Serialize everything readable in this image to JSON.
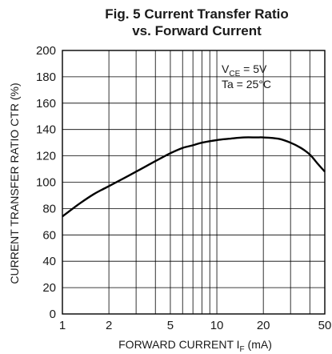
{
  "chart_data": {
    "type": "line",
    "title_line1": "Fig. 5 Current Transfer Ratio",
    "title_line2": "vs. Forward Current",
    "xlabel": "FORWARD CURRENT I",
    "xlabel_sub": "F",
    "xlabel_unit": " (mA)",
    "ylabel": "CURRENT TRANSFER RATIO CTR (%)",
    "x_scale": "log",
    "xlim": [
      1,
      50
    ],
    "ylim": [
      0,
      200
    ],
    "x_ticks": [
      {
        "value": 1,
        "label": "1"
      },
      {
        "value": 2,
        "label": "2"
      },
      {
        "value": 5,
        "label": "5"
      },
      {
        "value": 10,
        "label": "10"
      },
      {
        "value": 20,
        "label": "20"
      },
      {
        "value": 50,
        "label": "50"
      }
    ],
    "x_minor_gridlines": [
      3,
      4,
      6,
      7,
      8,
      9,
      30,
      40
    ],
    "y_ticks": [
      0,
      20,
      40,
      60,
      80,
      100,
      120,
      140,
      160,
      180,
      200
    ],
    "grid": true,
    "annotation_vce": "V",
    "annotation_vce_sub": "CE",
    "annotation_vce_value": " = 5V",
    "annotation_ta": "Ta = 25°C",
    "series": [
      {
        "x": [
          1,
          1.3,
          1.6,
          2,
          2.5,
          3,
          4,
          5,
          6,
          7,
          8,
          10,
          12,
          15,
          18,
          20,
          25,
          30,
          35,
          40,
          45,
          50
        ],
        "y": [
          74,
          84,
          91,
          97,
          103,
          108,
          116,
          122,
          126,
          128,
          130,
          132,
          133,
          134,
          134,
          134,
          133,
          130,
          126,
          121,
          114,
          108
        ]
      }
    ],
    "line_color": "#000000"
  }
}
